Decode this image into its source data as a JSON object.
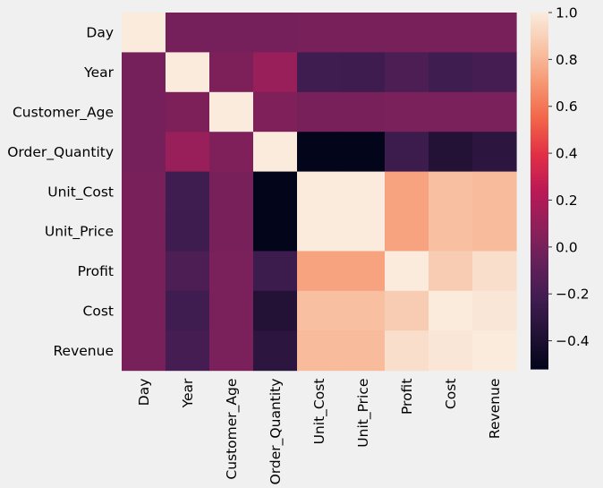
{
  "chart_data": {
    "type": "heatmap",
    "title": "",
    "xlabel": "",
    "ylabel": "",
    "variables": [
      "Day",
      "Year",
      "Customer_Age",
      "Order_Quantity",
      "Unit_Cost",
      "Unit_Price",
      "Profit",
      "Cost",
      "Revenue"
    ],
    "values": [
      [
        1.0,
        -0.01,
        -0.01,
        -0.01,
        -0.0,
        -0.0,
        0.0,
        0.0,
        0.0
      ],
      [
        -0.01,
        1.0,
        0.02,
        0.12,
        -0.22,
        -0.23,
        -0.17,
        -0.22,
        -0.2
      ],
      [
        -0.01,
        0.02,
        1.0,
        0.03,
        -0.0,
        -0.0,
        0.01,
        0.01,
        0.01
      ],
      [
        -0.01,
        0.12,
        0.03,
        1.0,
        -0.52,
        -0.52,
        -0.24,
        -0.37,
        -0.32
      ],
      [
        -0.0,
        -0.22,
        -0.0,
        -0.52,
        1.0,
        1.0,
        0.74,
        0.83,
        0.82
      ],
      [
        -0.0,
        -0.23,
        -0.0,
        -0.52,
        1.0,
        1.0,
        0.74,
        0.83,
        0.82
      ],
      [
        0.0,
        -0.17,
        0.01,
        -0.24,
        0.74,
        0.74,
        1.0,
        0.88,
        0.95
      ],
      [
        0.0,
        -0.22,
        0.01,
        -0.37,
        0.83,
        0.83,
        0.88,
        1.0,
        0.98
      ],
      [
        0.0,
        -0.2,
        0.01,
        -0.32,
        0.82,
        0.82,
        0.95,
        0.98,
        1.0
      ]
    ],
    "colorbar": {
      "vmin": -0.52,
      "vmax": 1.0,
      "ticks": [
        -0.4,
        -0.2,
        0.0,
        0.2,
        0.4,
        0.6,
        0.8,
        1.0
      ],
      "tick_labels": [
        "−0.4",
        "−0.2",
        "0.0",
        "0.2",
        "0.4",
        "0.6",
        "0.8",
        "1.0"
      ],
      "colormap": "rocket",
      "placement": "right"
    },
    "grid": false
  }
}
